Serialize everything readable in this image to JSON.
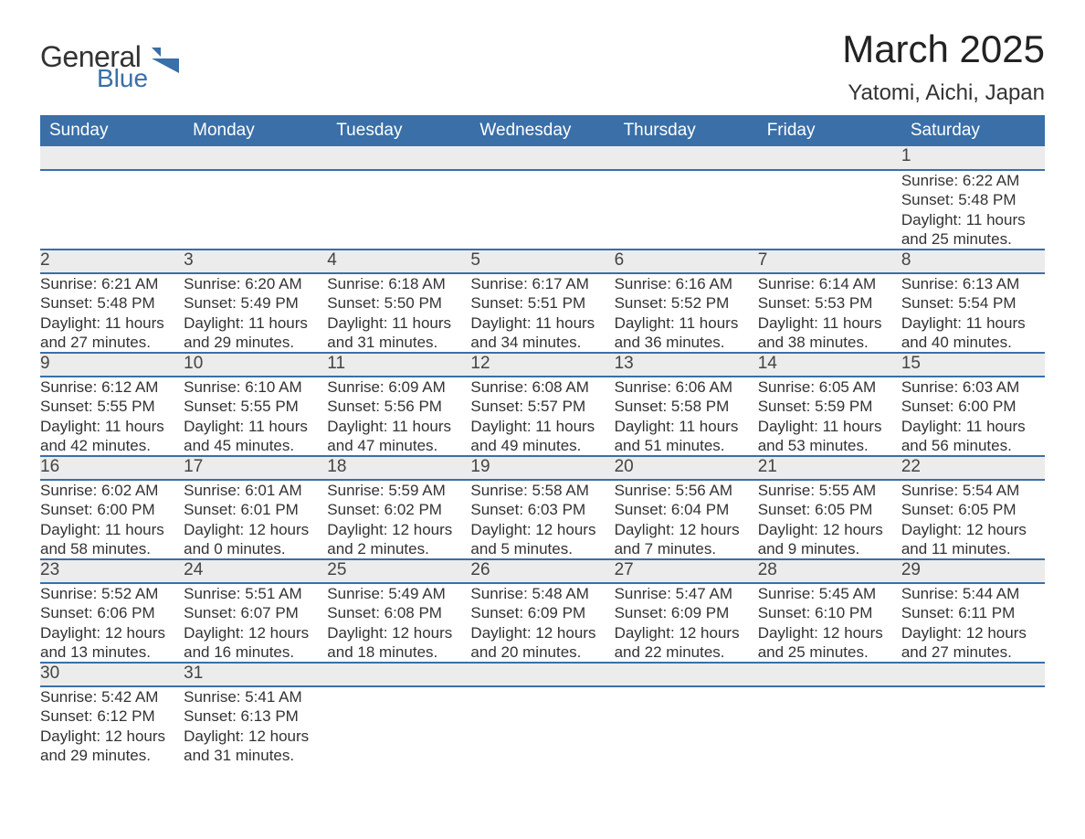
{
  "brand": {
    "name_top": "General",
    "name_bottom": "Blue",
    "top_color": "#333333",
    "bottom_color": "#3a6fa8",
    "shape_color": "#3a6fa8"
  },
  "header": {
    "title": "March 2025",
    "subtitle": "Yatomi, Aichi, Japan"
  },
  "calendar": {
    "type": "table",
    "header_bg": "#3a6fa8",
    "header_fg": "#ffffff",
    "daynum_bg": "#ececec",
    "row_divider_color": "#3a6fa8",
    "text_color": "#333333",
    "font_size_header": 19,
    "font_size_daynum": 19,
    "font_size_detail": 17,
    "columns": [
      "Sunday",
      "Monday",
      "Tuesday",
      "Wednesday",
      "Thursday",
      "Friday",
      "Saturday"
    ],
    "weeks": [
      [
        null,
        null,
        null,
        null,
        null,
        null,
        {
          "day": "1",
          "sunrise": "Sunrise: 6:22 AM",
          "sunset": "Sunset: 5:48 PM",
          "daylight1": "Daylight: 11 hours",
          "daylight2": "and 25 minutes."
        }
      ],
      [
        {
          "day": "2",
          "sunrise": "Sunrise: 6:21 AM",
          "sunset": "Sunset: 5:48 PM",
          "daylight1": "Daylight: 11 hours",
          "daylight2": "and 27 minutes."
        },
        {
          "day": "3",
          "sunrise": "Sunrise: 6:20 AM",
          "sunset": "Sunset: 5:49 PM",
          "daylight1": "Daylight: 11 hours",
          "daylight2": "and 29 minutes."
        },
        {
          "day": "4",
          "sunrise": "Sunrise: 6:18 AM",
          "sunset": "Sunset: 5:50 PM",
          "daylight1": "Daylight: 11 hours",
          "daylight2": "and 31 minutes."
        },
        {
          "day": "5",
          "sunrise": "Sunrise: 6:17 AM",
          "sunset": "Sunset: 5:51 PM",
          "daylight1": "Daylight: 11 hours",
          "daylight2": "and 34 minutes."
        },
        {
          "day": "6",
          "sunrise": "Sunrise: 6:16 AM",
          "sunset": "Sunset: 5:52 PM",
          "daylight1": "Daylight: 11 hours",
          "daylight2": "and 36 minutes."
        },
        {
          "day": "7",
          "sunrise": "Sunrise: 6:14 AM",
          "sunset": "Sunset: 5:53 PM",
          "daylight1": "Daylight: 11 hours",
          "daylight2": "and 38 minutes."
        },
        {
          "day": "8",
          "sunrise": "Sunrise: 6:13 AM",
          "sunset": "Sunset: 5:54 PM",
          "daylight1": "Daylight: 11 hours",
          "daylight2": "and 40 minutes."
        }
      ],
      [
        {
          "day": "9",
          "sunrise": "Sunrise: 6:12 AM",
          "sunset": "Sunset: 5:55 PM",
          "daylight1": "Daylight: 11 hours",
          "daylight2": "and 42 minutes."
        },
        {
          "day": "10",
          "sunrise": "Sunrise: 6:10 AM",
          "sunset": "Sunset: 5:55 PM",
          "daylight1": "Daylight: 11 hours",
          "daylight2": "and 45 minutes."
        },
        {
          "day": "11",
          "sunrise": "Sunrise: 6:09 AM",
          "sunset": "Sunset: 5:56 PM",
          "daylight1": "Daylight: 11 hours",
          "daylight2": "and 47 minutes."
        },
        {
          "day": "12",
          "sunrise": "Sunrise: 6:08 AM",
          "sunset": "Sunset: 5:57 PM",
          "daylight1": "Daylight: 11 hours",
          "daylight2": "and 49 minutes."
        },
        {
          "day": "13",
          "sunrise": "Sunrise: 6:06 AM",
          "sunset": "Sunset: 5:58 PM",
          "daylight1": "Daylight: 11 hours",
          "daylight2": "and 51 minutes."
        },
        {
          "day": "14",
          "sunrise": "Sunrise: 6:05 AM",
          "sunset": "Sunset: 5:59 PM",
          "daylight1": "Daylight: 11 hours",
          "daylight2": "and 53 minutes."
        },
        {
          "day": "15",
          "sunrise": "Sunrise: 6:03 AM",
          "sunset": "Sunset: 6:00 PM",
          "daylight1": "Daylight: 11 hours",
          "daylight2": "and 56 minutes."
        }
      ],
      [
        {
          "day": "16",
          "sunrise": "Sunrise: 6:02 AM",
          "sunset": "Sunset: 6:00 PM",
          "daylight1": "Daylight: 11 hours",
          "daylight2": "and 58 minutes."
        },
        {
          "day": "17",
          "sunrise": "Sunrise: 6:01 AM",
          "sunset": "Sunset: 6:01 PM",
          "daylight1": "Daylight: 12 hours",
          "daylight2": "and 0 minutes."
        },
        {
          "day": "18",
          "sunrise": "Sunrise: 5:59 AM",
          "sunset": "Sunset: 6:02 PM",
          "daylight1": "Daylight: 12 hours",
          "daylight2": "and 2 minutes."
        },
        {
          "day": "19",
          "sunrise": "Sunrise: 5:58 AM",
          "sunset": "Sunset: 6:03 PM",
          "daylight1": "Daylight: 12 hours",
          "daylight2": "and 5 minutes."
        },
        {
          "day": "20",
          "sunrise": "Sunrise: 5:56 AM",
          "sunset": "Sunset: 6:04 PM",
          "daylight1": "Daylight: 12 hours",
          "daylight2": "and 7 minutes."
        },
        {
          "day": "21",
          "sunrise": "Sunrise: 5:55 AM",
          "sunset": "Sunset: 6:05 PM",
          "daylight1": "Daylight: 12 hours",
          "daylight2": "and 9 minutes."
        },
        {
          "day": "22",
          "sunrise": "Sunrise: 5:54 AM",
          "sunset": "Sunset: 6:05 PM",
          "daylight1": "Daylight: 12 hours",
          "daylight2": "and 11 minutes."
        }
      ],
      [
        {
          "day": "23",
          "sunrise": "Sunrise: 5:52 AM",
          "sunset": "Sunset: 6:06 PM",
          "daylight1": "Daylight: 12 hours",
          "daylight2": "and 13 minutes."
        },
        {
          "day": "24",
          "sunrise": "Sunrise: 5:51 AM",
          "sunset": "Sunset: 6:07 PM",
          "daylight1": "Daylight: 12 hours",
          "daylight2": "and 16 minutes."
        },
        {
          "day": "25",
          "sunrise": "Sunrise: 5:49 AM",
          "sunset": "Sunset: 6:08 PM",
          "daylight1": "Daylight: 12 hours",
          "daylight2": "and 18 minutes."
        },
        {
          "day": "26",
          "sunrise": "Sunrise: 5:48 AM",
          "sunset": "Sunset: 6:09 PM",
          "daylight1": "Daylight: 12 hours",
          "daylight2": "and 20 minutes."
        },
        {
          "day": "27",
          "sunrise": "Sunrise: 5:47 AM",
          "sunset": "Sunset: 6:09 PM",
          "daylight1": "Daylight: 12 hours",
          "daylight2": "and 22 minutes."
        },
        {
          "day": "28",
          "sunrise": "Sunrise: 5:45 AM",
          "sunset": "Sunset: 6:10 PM",
          "daylight1": "Daylight: 12 hours",
          "daylight2": "and 25 minutes."
        },
        {
          "day": "29",
          "sunrise": "Sunrise: 5:44 AM",
          "sunset": "Sunset: 6:11 PM",
          "daylight1": "Daylight: 12 hours",
          "daylight2": "and 27 minutes."
        }
      ],
      [
        {
          "day": "30",
          "sunrise": "Sunrise: 5:42 AM",
          "sunset": "Sunset: 6:12 PM",
          "daylight1": "Daylight: 12 hours",
          "daylight2": "and 29 minutes."
        },
        {
          "day": "31",
          "sunrise": "Sunrise: 5:41 AM",
          "sunset": "Sunset: 6:13 PM",
          "daylight1": "Daylight: 12 hours",
          "daylight2": "and 31 minutes."
        },
        null,
        null,
        null,
        null,
        null
      ]
    ]
  }
}
